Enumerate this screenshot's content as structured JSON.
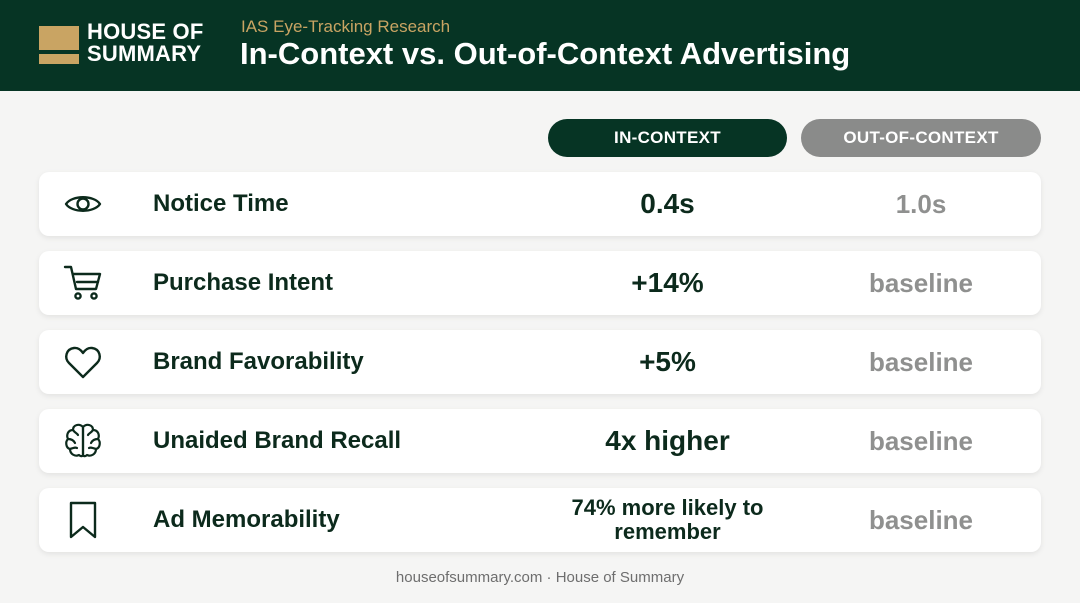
{
  "header": {
    "logo_line1": "HOUSE OF",
    "logo_line2": "SUMMARY",
    "subtitle": "IAS Eye-Tracking Research",
    "title": "In-Context vs. Out-of-Context Advertising"
  },
  "columns": {
    "in_context": "IN-CONTEXT",
    "out_of_context": "OUT-OF-CONTEXT"
  },
  "rows": [
    {
      "icon": "eye-icon",
      "label": "Notice Time",
      "in_context": "0.4s",
      "out_of_context": "1.0s"
    },
    {
      "icon": "shopping-cart-icon",
      "label": "Purchase Intent",
      "in_context": "+14%",
      "out_of_context": "baseline"
    },
    {
      "icon": "heart-icon",
      "label": "Brand Favorability",
      "in_context": "+5%",
      "out_of_context": "baseline"
    },
    {
      "icon": "brain-icon",
      "label": "Unaided Brand Recall",
      "in_context": "4x higher",
      "out_of_context": "baseline"
    },
    {
      "icon": "bookmark-icon",
      "label": "Ad Memorability",
      "in_context": "74% more likely to remember",
      "out_of_context": "baseline"
    }
  ],
  "footer": "houseofsummary.com · House of Summary",
  "colors": {
    "brand_dark_green": "#063424",
    "brand_gold": "#c9a463",
    "out_of_context_gray": "#8a8b8a",
    "background": "#f5f5f4"
  }
}
